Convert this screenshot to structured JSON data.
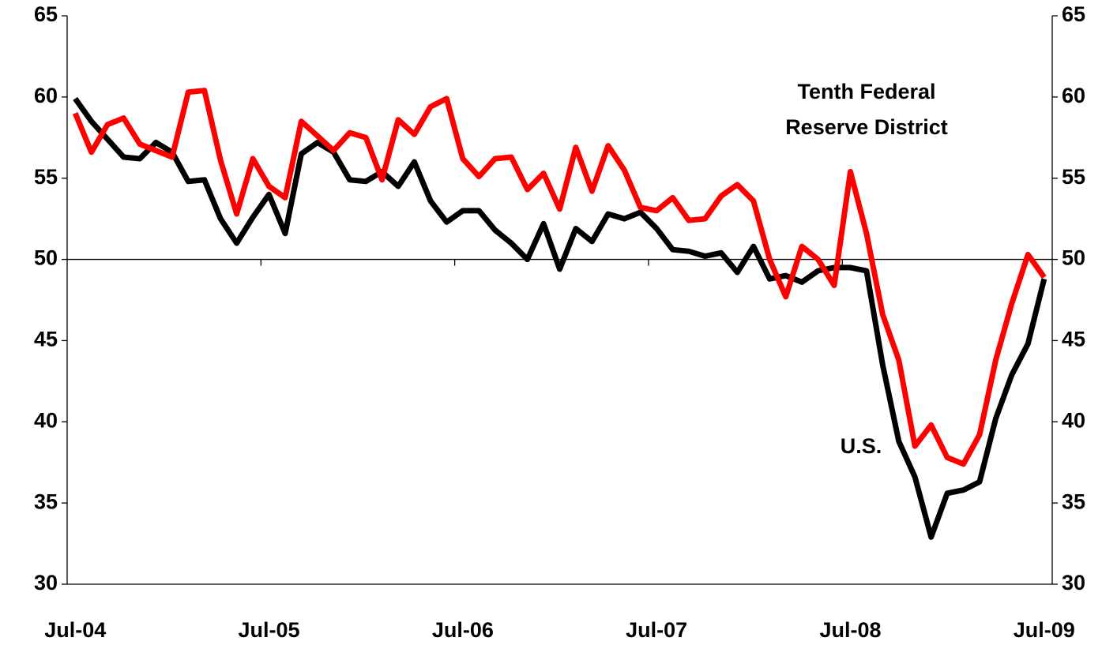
{
  "chart_data": {
    "type": "line",
    "categories": [
      "Jul-04",
      null,
      null,
      null,
      null,
      null,
      null,
      null,
      null,
      null,
      null,
      null,
      "Jul-05",
      null,
      null,
      null,
      null,
      null,
      null,
      null,
      null,
      null,
      null,
      null,
      "Jul-06",
      null,
      null,
      null,
      null,
      null,
      null,
      null,
      null,
      null,
      null,
      null,
      "Jul-07",
      null,
      null,
      null,
      null,
      null,
      null,
      null,
      null,
      null,
      null,
      null,
      "Jul-08",
      null,
      null,
      null,
      null,
      null,
      null,
      null,
      null,
      null,
      null,
      null,
      "Jul-09"
    ],
    "series": [
      {
        "color": "#000000",
        "values": [
          59.9,
          58.5,
          57.4,
          56.3,
          56.2,
          57.2,
          56.6,
          54.8,
          54.9,
          52.5,
          51.0,
          52.6,
          54.0,
          51.6,
          56.5,
          57.2,
          56.6,
          54.9,
          54.8,
          55.4,
          54.5,
          56.0,
          53.6,
          52.3,
          53.0,
          53.0,
          51.8,
          51.0,
          50.0,
          52.2,
          49.4,
          51.9,
          51.1,
          52.8,
          52.5,
          52.9,
          51.9,
          50.6,
          50.5,
          50.2,
          50.4,
          49.2,
          50.8,
          48.8,
          49.0,
          48.6,
          49.3,
          49.5,
          49.5,
          49.3,
          43.5,
          38.8,
          36.6,
          32.9,
          35.6,
          35.8,
          36.3,
          40.2,
          42.9,
          44.8,
          48.8
        ]
      },
      {
        "color": "#ff0000",
        "values": [
          59.0,
          56.6,
          58.3,
          58.7,
          57.1,
          56.7,
          56.3,
          60.3,
          60.4,
          56.1,
          52.8,
          56.2,
          54.5,
          53.8,
          58.5,
          57.6,
          56.7,
          57.8,
          57.5,
          54.9,
          58.6,
          57.7,
          59.4,
          59.9,
          56.2,
          55.1,
          56.2,
          56.3,
          54.3,
          55.3,
          53.1,
          56.9,
          54.2,
          57.0,
          55.5,
          53.2,
          53.0,
          53.8,
          52.4,
          52.5,
          53.9,
          54.6,
          53.6,
          50.0,
          47.7,
          50.8,
          50.0,
          48.4,
          55.4,
          51.6,
          46.6,
          43.8,
          38.5,
          39.8,
          37.8,
          37.4,
          39.2,
          43.8,
          47.3,
          50.3,
          48.9
        ]
      }
    ],
    "ylim": [
      30,
      65
    ],
    "yticks": [
      30,
      35,
      40,
      45,
      50,
      55,
      60,
      65
    ],
    "y2lim": [
      30,
      65
    ],
    "y2ticks": [
      30,
      35,
      40,
      45,
      50,
      55,
      60,
      65
    ],
    "reference_line": 50,
    "annotations": [
      "Tenth Federal",
      "Reserve District",
      "U.S."
    ]
  }
}
